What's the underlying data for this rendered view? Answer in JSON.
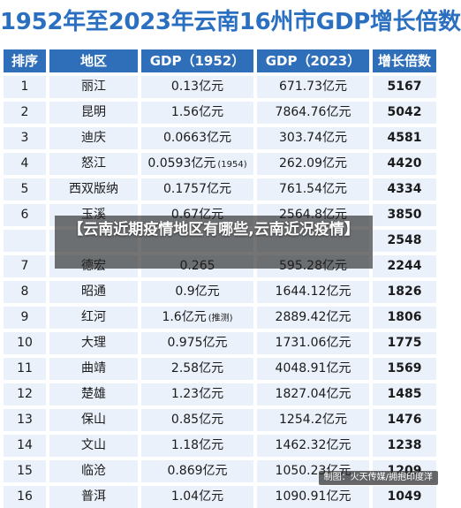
{
  "title": "1952年至2023年云南16州市GDP增长倍数",
  "headers": {
    "rank": "排序",
    "region": "地区",
    "gdp1952": "GDP（1952）",
    "gdp2023": "GDP（2023）",
    "growth": "增长倍数"
  },
  "rows": [
    {
      "rank": "1",
      "region": "丽江",
      "gdp1952": "0.13亿元",
      "gdp1952_note": "",
      "gdp2023": "671.73亿元",
      "growth": "5167"
    },
    {
      "rank": "2",
      "region": "昆明",
      "gdp1952": "1.56亿元",
      "gdp1952_note": "",
      "gdp2023": "7864.76亿元",
      "growth": "5042"
    },
    {
      "rank": "3",
      "region": "迪庆",
      "gdp1952": "0.0663亿元",
      "gdp1952_note": "",
      "gdp2023": "303.74亿元",
      "growth": "4581"
    },
    {
      "rank": "4",
      "region": "怒江",
      "gdp1952": "0.0593亿元",
      "gdp1952_note": "(1954)",
      "gdp2023": "262.09亿元",
      "growth": "4420"
    },
    {
      "rank": "5",
      "region": "西双版纳",
      "gdp1952": "0.1757亿元",
      "gdp1952_note": "",
      "gdp2023": "761.54亿元",
      "growth": "4334"
    },
    {
      "rank": "6",
      "region": "玉溪",
      "gdp1952": "0.67亿元",
      "gdp1952_note": "",
      "gdp2023": "2564.8亿元",
      "growth": "3850"
    },
    {
      "rank": "",
      "region": "",
      "gdp1952": "",
      "gdp1952_note": "",
      "gdp2023": "",
      "growth": "2548"
    },
    {
      "rank": "7",
      "region": "德宏",
      "gdp1952": "0.265",
      "gdp1952_note": "",
      "gdp2023": "595.28亿元",
      "growth": "2244"
    },
    {
      "rank": "8",
      "region": "昭通",
      "gdp1952": "0.9亿元",
      "gdp1952_note": "",
      "gdp2023": "1644.12亿元",
      "growth": "1826"
    },
    {
      "rank": "9",
      "region": "红河",
      "gdp1952": "1.6亿元",
      "gdp1952_note": "(推测)",
      "gdp2023": "2889.42亿元",
      "growth": "1806"
    },
    {
      "rank": "10",
      "region": "大理",
      "gdp1952": "0.975亿元",
      "gdp1952_note": "",
      "gdp2023": "1731.06亿元",
      "growth": "1775"
    },
    {
      "rank": "11",
      "region": "曲靖",
      "gdp1952": "2.58亿元",
      "gdp1952_note": "",
      "gdp2023": "4048.91亿元",
      "growth": "1569"
    },
    {
      "rank": "12",
      "region": "楚雄",
      "gdp1952": "1.23亿元",
      "gdp1952_note": "",
      "gdp2023": "1827.04亿元",
      "growth": "1485"
    },
    {
      "rank": "13",
      "region": "保山",
      "gdp1952": "0.85亿元",
      "gdp1952_note": "",
      "gdp2023": "1254.2亿元",
      "growth": "1476"
    },
    {
      "rank": "14",
      "region": "文山",
      "gdp1952": "1.18亿元",
      "gdp1952_note": "",
      "gdp2023": "1462.32亿元",
      "growth": "1238"
    },
    {
      "rank": "15",
      "region": "临沧",
      "gdp1952": "0.869亿元",
      "gdp1952_note": "",
      "gdp2023": "1050.23亿元",
      "growth": "1209"
    },
    {
      "rank": "16",
      "region": "普洱",
      "gdp1952": "1.04亿元",
      "gdp1952_note": "",
      "gdp2023": "1090.91亿元",
      "growth": "1049"
    }
  ],
  "overlay_text": "【云南近期疫情地区有哪些,云南近况疫情】",
  "credit": "制图：火天传媒/拥抱印度洋",
  "colors": {
    "title_text": "#2a6fc0",
    "header_bg": "#2f6fba",
    "header_text": "#ffffff",
    "cell_bg": "#eaf1fa",
    "overlay_bg": "#1e1e1e"
  }
}
